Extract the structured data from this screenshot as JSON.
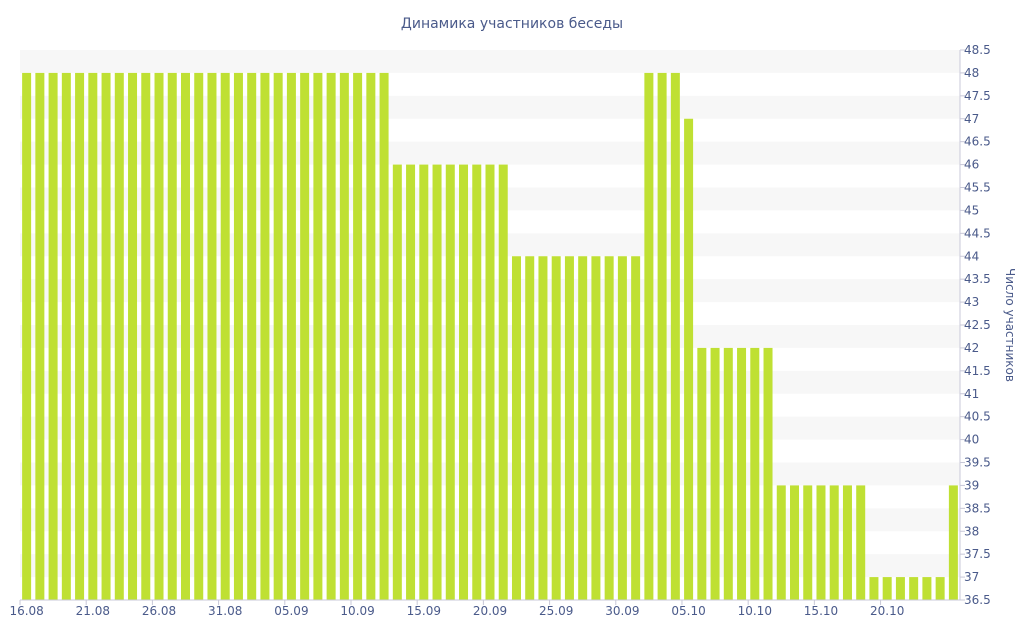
{
  "chart_data": {
    "type": "bar",
    "title": "Динамика участников беседы",
    "xlabel": "",
    "ylabel": "Число участников",
    "ylim": [
      36.5,
      48.5
    ],
    "y_tick_step": 0.5,
    "y_axis_side": "right",
    "legend": "none",
    "banded_background": true,
    "bar_color": "#bfe033",
    "x_tick_labels": [
      "16.08",
      "21.08",
      "26.08",
      "31.08",
      "05.09",
      "10.09",
      "15.09",
      "20.09",
      "25.09",
      "30.09",
      "05.10",
      "10.10",
      "15.10",
      "20.10"
    ],
    "categories": [
      "16.08",
      "17.08",
      "18.08",
      "19.08",
      "20.08",
      "21.08",
      "22.08",
      "23.08",
      "24.08",
      "25.08",
      "26.08",
      "27.08",
      "28.08",
      "29.08",
      "30.08",
      "31.08",
      "01.09",
      "02.09",
      "03.09",
      "04.09",
      "05.09",
      "06.09",
      "07.09",
      "08.09",
      "09.09",
      "10.09",
      "11.09",
      "12.09",
      "13.09",
      "14.09",
      "15.09",
      "16.09",
      "17.09",
      "18.09",
      "19.09",
      "20.09",
      "21.09",
      "22.09",
      "23.09",
      "24.09",
      "25.09",
      "26.09",
      "27.09",
      "28.09",
      "29.09",
      "30.09",
      "01.10",
      "02.10",
      "03.10",
      "04.10",
      "05.10",
      "06.10",
      "07.10",
      "08.10",
      "09.10",
      "10.10",
      "11.10",
      "12.10",
      "13.10",
      "14.10",
      "15.10",
      "16.10",
      "17.10",
      "18.10",
      "19.10",
      "20.10",
      "21.10",
      "22.10",
      "23.10",
      "24.10",
      "25.10"
    ],
    "values": [
      48,
      48,
      48,
      48,
      48,
      48,
      48,
      48,
      48,
      48,
      48,
      48,
      48,
      48,
      48,
      48,
      48,
      48,
      48,
      48,
      48,
      48,
      48,
      48,
      48,
      48,
      48,
      48,
      46,
      46,
      46,
      46,
      46,
      46,
      46,
      46,
      46,
      44,
      44,
      44,
      44,
      44,
      44,
      44,
      44,
      44,
      44,
      48,
      48,
      48,
      47,
      42,
      42,
      42,
      42,
      42,
      42,
      39,
      39,
      39,
      39,
      39,
      39,
      39,
      37,
      37,
      37,
      37,
      37,
      37,
      39
    ]
  }
}
